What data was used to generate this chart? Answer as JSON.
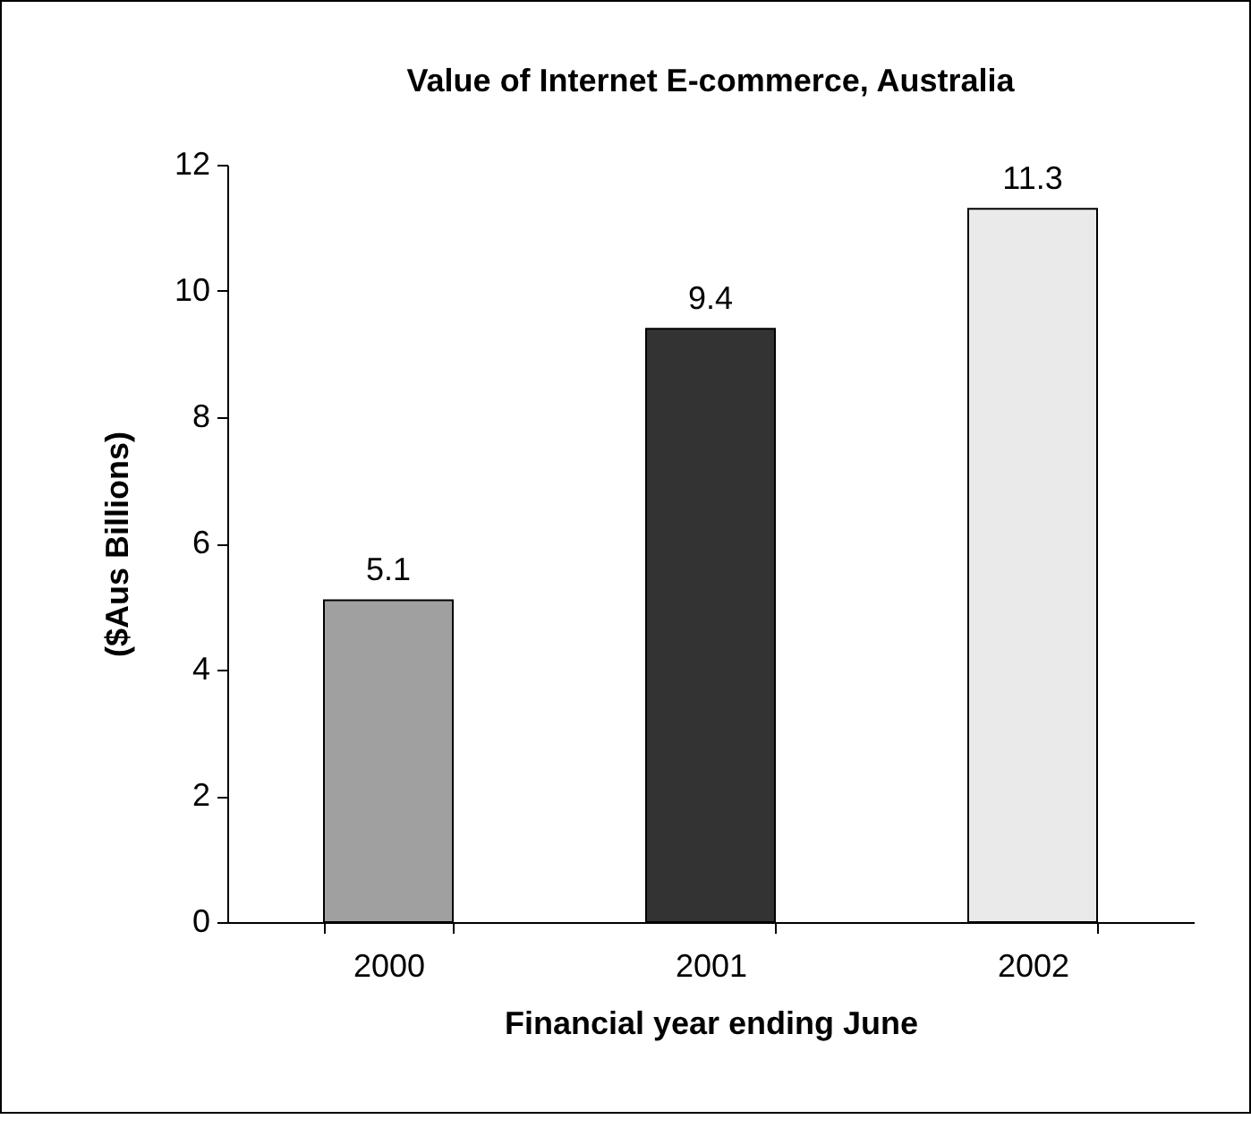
{
  "chart_data": {
    "type": "bar",
    "title": "Value of Internet E-commerce, Australia",
    "xlabel": "Financial year ending June",
    "ylabel": "($Aus Billions)",
    "categories": [
      "2000",
      "2001",
      "2002"
    ],
    "values": [
      5.1,
      9.4,
      11.3
    ],
    "colors": [
      "#a0a0a0",
      "#333333",
      "#eaeaea"
    ],
    "ylim": [
      0,
      12
    ],
    "yticks": [
      0,
      2,
      4,
      6,
      8,
      10,
      12
    ],
    "data_labels": true
  }
}
